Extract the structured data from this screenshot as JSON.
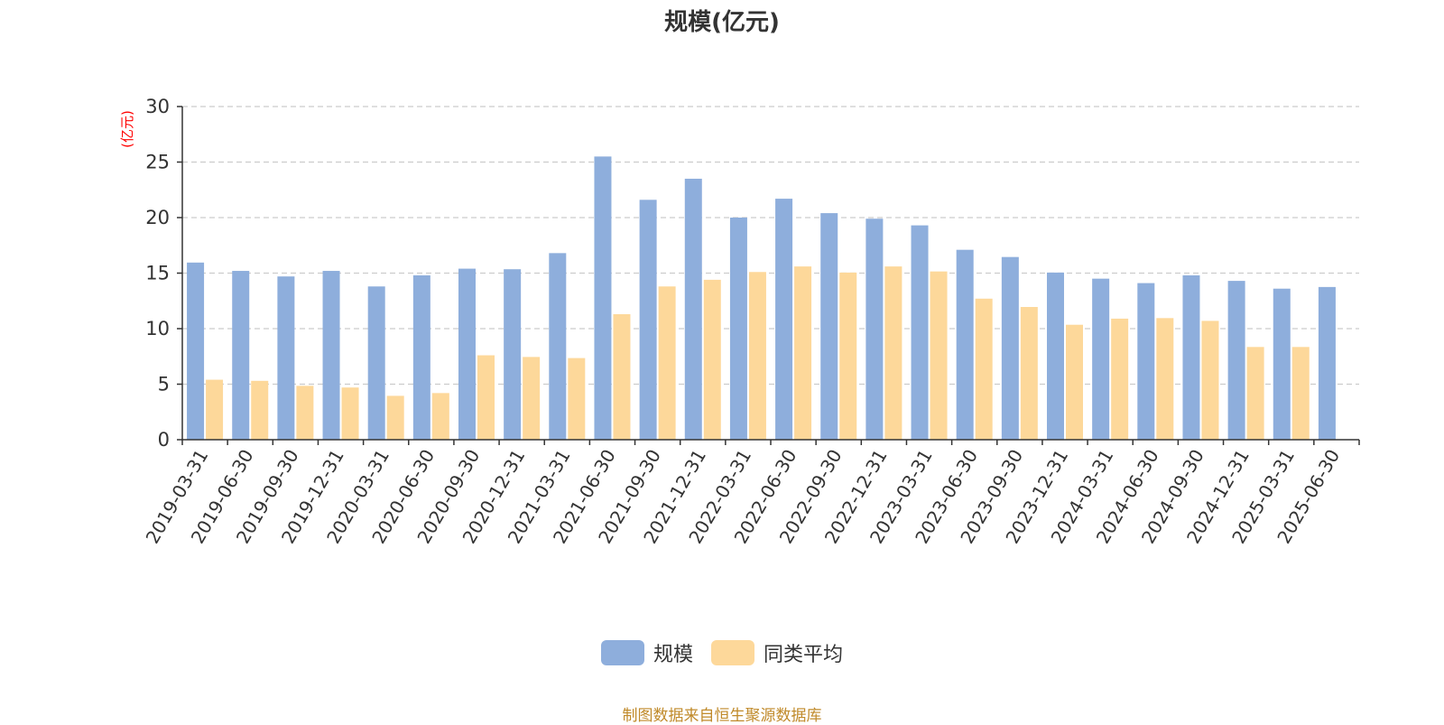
{
  "chart_data": {
    "type": "bar",
    "title": "规模(亿元)",
    "ylabel": "(亿元)",
    "ylim": [
      0,
      30
    ],
    "yticks": [
      0,
      5,
      10,
      15,
      20,
      25,
      30
    ],
    "grid": true,
    "legend_position": "bottom-center",
    "categories": [
      "2019-03-31",
      "2019-06-30",
      "2019-09-30",
      "2019-12-31",
      "2020-03-31",
      "2020-06-30",
      "2020-09-30",
      "2020-12-31",
      "2021-03-31",
      "2021-06-30",
      "2021-09-30",
      "2021-12-31",
      "2022-03-31",
      "2022-06-30",
      "2022-09-30",
      "2022-12-31",
      "2023-03-31",
      "2023-06-30",
      "2023-09-30",
      "2023-12-31",
      "2024-03-31",
      "2024-06-30",
      "2024-09-30",
      "2024-12-31",
      "2025-03-31",
      "2025-06-30"
    ],
    "series": [
      {
        "name": "规模",
        "color": "#8eaedc",
        "values": [
          15.95,
          15.2,
          14.7,
          15.2,
          13.8,
          14.8,
          15.4,
          15.35,
          16.8,
          25.5,
          21.6,
          23.5,
          20.0,
          21.7,
          20.4,
          19.9,
          19.3,
          17.1,
          16.45,
          15.05,
          14.5,
          14.1,
          14.8,
          14.3,
          13.6,
          13.75
        ]
      },
      {
        "name": "同类平均",
        "color": "#fdd89a",
        "values": [
          5.4,
          5.3,
          4.85,
          4.7,
          3.95,
          4.2,
          7.6,
          7.45,
          7.35,
          11.3,
          13.8,
          14.4,
          15.1,
          15.6,
          15.05,
          15.6,
          15.15,
          12.7,
          11.95,
          10.35,
          10.9,
          10.95,
          10.7,
          8.35,
          8.35,
          null
        ]
      }
    ]
  },
  "source_note": "制图数据来自恒生聚源数据库",
  "colors": {
    "axis": "#333333",
    "grid": "#cccccc",
    "ylabel": "#ff0000",
    "source": "#c08a2a"
  }
}
